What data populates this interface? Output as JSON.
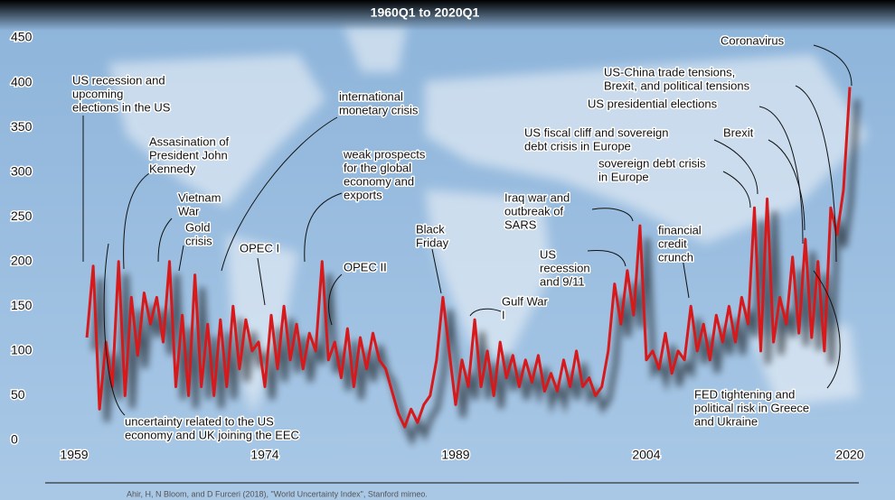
{
  "chart_data": {
    "type": "line",
    "title": "1960Q1 to 2020Q1",
    "x": [
      1960,
      1960.5,
      1961,
      1961.5,
      1962,
      1962.5,
      1963,
      1963.5,
      1964,
      1964.5,
      1965,
      1965.5,
      1966,
      1966.5,
      1967,
      1967.5,
      1968,
      1968.5,
      1969,
      1969.5,
      1970,
      1970.5,
      1971,
      1971.5,
      1972,
      1972.5,
      1973,
      1973.5,
      1974,
      1974.5,
      1975,
      1975.5,
      1976,
      1976.5,
      1977,
      1977.5,
      1978,
      1978.5,
      1979,
      1979.5,
      1980,
      1980.5,
      1981,
      1981.5,
      1982,
      1982.5,
      1983,
      1983.5,
      1984,
      1984.5,
      1985,
      1985.5,
      1986,
      1986.5,
      1987,
      1987.5,
      1988,
      1988.5,
      1989,
      1989.5,
      1990,
      1990.5,
      1991,
      1991.5,
      1992,
      1992.5,
      1993,
      1993.5,
      1994,
      1994.5,
      1995,
      1995.5,
      1996,
      1996.5,
      1997,
      1997.5,
      1998,
      1998.5,
      1999,
      1999.5,
      2000,
      2000.5,
      2001,
      2001.5,
      2002,
      2002.5,
      2003,
      2003.5,
      2004,
      2004.5,
      2005,
      2005.5,
      2006,
      2006.5,
      2007,
      2007.5,
      2008,
      2008.5,
      2009,
      2009.5,
      2010,
      2010.5,
      2011,
      2011.5,
      2012,
      2012.5,
      2013,
      2013.5,
      2014,
      2014.5,
      2015,
      2015.5,
      2016,
      2016.5,
      2017,
      2017.5,
      2018,
      2018.5,
      2019,
      2019.5,
      2020
    ],
    "values": [
      115,
      195,
      35,
      110,
      60,
      200,
      50,
      160,
      95,
      165,
      130,
      160,
      110,
      200,
      60,
      140,
      50,
      185,
      60,
      130,
      50,
      135,
      60,
      150,
      80,
      135,
      100,
      110,
      60,
      140,
      80,
      150,
      90,
      130,
      80,
      120,
      100,
      200,
      90,
      110,
      70,
      125,
      60,
      115,
      80,
      120,
      90,
      80,
      55,
      30,
      15,
      35,
      20,
      40,
      50,
      90,
      160,
      100,
      40,
      90,
      60,
      135,
      60,
      100,
      50,
      110,
      70,
      95,
      60,
      90,
      65,
      95,
      55,
      75,
      55,
      90,
      60,
      100,
      60,
      70,
      50,
      60,
      100,
      175,
      130,
      190,
      140,
      240,
      90,
      100,
      80,
      120,
      75,
      100,
      90,
      150,
      100,
      130,
      90,
      140,
      110,
      150,
      110,
      160,
      130,
      260,
      100,
      270,
      110,
      160,
      130,
      205,
      120,
      225,
      115,
      200,
      100,
      260,
      230,
      280,
      395
    ],
    "color": "#d7191c",
    "xlim": [
      1959,
      2020
    ],
    "xticks": [
      1959,
      1974,
      1989,
      2004,
      2020
    ],
    "ylim": [
      0,
      450
    ],
    "yticks": [
      0,
      50,
      100,
      150,
      200,
      250,
      300,
      350,
      400,
      450
    ],
    "annotations": [
      [
        "US recession and",
        "upcoming",
        "elections in the US"
      ],
      [
        "Assasination of",
        "President John",
        "Kennedy"
      ],
      [
        "Vietnam",
        "War"
      ],
      [
        "Gold",
        "crisis"
      ],
      [
        "OPEC I"
      ],
      [
        "international",
        "monetary crisis"
      ],
      [
        "weak prospects",
        "for the global",
        "economy and",
        "exports"
      ],
      [
        "OPEC II"
      ],
      [
        "Black",
        "Friday"
      ],
      [
        "Gulf War",
        "I"
      ],
      [
        "Iraq war and",
        "outbreak of",
        "SARS"
      ],
      [
        "US",
        "recession",
        "and 9/11"
      ],
      [
        "financial",
        "credit",
        "crunch"
      ],
      [
        "US fiscal cliff and sovereign",
        "debt crisis in Europe"
      ],
      [
        "sovereign debt crisis",
        "in Europe"
      ],
      [
        "Brexit"
      ],
      [
        "US presidential elections"
      ],
      [
        "US-China trade tensions,",
        "Brexit, and political tensions"
      ],
      [
        "Coronavirus"
      ],
      [
        "FED tightening and",
        "political risk in Greece",
        "and Ukraine"
      ],
      [
        "uncertainty related to the US",
        "economy and UK joining the EEC"
      ]
    ],
    "source": "Ahir, H, N Bloom, and D Furceri (2018), \"World Uncertainty Index\", Stanford mimeo."
  }
}
